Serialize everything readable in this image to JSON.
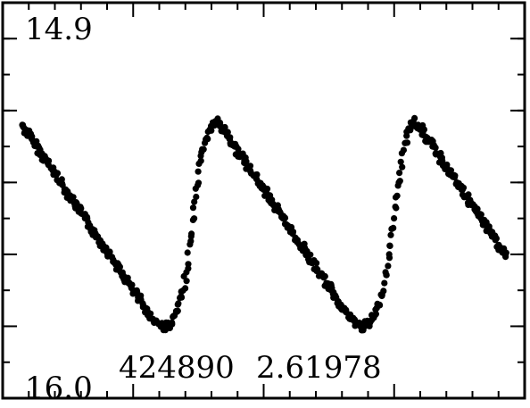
{
  "chart_data": {
    "type": "scatter",
    "title": "",
    "xlabel": "",
    "ylabel": "",
    "xlim": [
      0,
      2.0
    ],
    "ylim": [
      16.0,
      14.9
    ],
    "y_inverted": true,
    "grid": false,
    "y_top_label": "14.9",
    "y_bottom_label": "16.0",
    "annotation": {
      "star_id": "424890",
      "period": "2.61978"
    },
    "marker_color": "#000000",
    "series": [
      {
        "name": "light curve",
        "x": [
          0.0,
          0.02,
          0.04,
          0.06,
          0.08,
          0.1,
          0.12,
          0.14,
          0.16,
          0.18,
          0.2,
          0.22,
          0.24,
          0.26,
          0.28,
          0.3,
          0.32,
          0.34,
          0.36,
          0.38,
          0.4,
          0.42,
          0.44,
          0.46,
          0.48,
          0.5,
          0.52,
          0.54,
          0.56,
          0.58,
          0.6,
          0.62,
          0.64,
          0.66,
          0.68,
          0.7,
          0.72,
          0.74,
          0.76,
          0.78,
          0.8,
          0.82,
          0.84,
          0.86,
          0.88,
          0.9,
          0.92,
          0.94,
          0.96,
          0.98,
          1.0,
          1.02,
          1.04,
          1.06,
          1.08,
          1.1,
          1.12,
          1.14,
          1.16,
          1.18,
          1.2,
          1.22,
          1.24,
          1.26,
          1.28,
          1.3,
          1.32,
          1.34,
          1.36,
          1.38,
          1.4,
          1.42,
          1.44,
          1.46,
          1.48,
          1.5,
          1.52,
          1.54,
          1.56,
          1.58,
          1.6,
          1.62,
          1.64,
          1.66,
          1.68,
          1.7,
          1.72,
          1.74,
          1.76,
          1.78,
          1.8,
          1.82,
          1.84,
          1.86,
          1.88,
          1.9,
          1.92,
          1.94,
          1.96,
          1.98,
          2.0
        ],
        "y": [
          15.24,
          15.26,
          15.28,
          15.3,
          15.32,
          15.34,
          15.36,
          15.38,
          15.4,
          15.42,
          15.44,
          15.46,
          15.48,
          15.5,
          15.52,
          15.54,
          15.56,
          15.58,
          15.6,
          15.62,
          15.64,
          15.66,
          15.68,
          15.7,
          15.72,
          15.74,
          15.76,
          15.78,
          15.79,
          15.8,
          15.8,
          15.79,
          15.76,
          15.72,
          15.65,
          15.55,
          15.44,
          15.34,
          15.28,
          15.25,
          15.23,
          15.24,
          15.26,
          15.28,
          15.3,
          15.32,
          15.34,
          15.36,
          15.38,
          15.4,
          15.42,
          15.44,
          15.46,
          15.48,
          15.5,
          15.52,
          15.54,
          15.56,
          15.58,
          15.6,
          15.62,
          15.64,
          15.66,
          15.68,
          15.7,
          15.72,
          15.74,
          15.76,
          15.78,
          15.79,
          15.8,
          15.8,
          15.79,
          15.77,
          15.74,
          15.68,
          15.6,
          15.5,
          15.4,
          15.31,
          15.25,
          15.23,
          15.24,
          15.26,
          15.28,
          15.3,
          15.32,
          15.34,
          15.36,
          15.38,
          15.4,
          15.42,
          15.44,
          15.46,
          15.48,
          15.5,
          15.52,
          15.54,
          15.56,
          15.58,
          15.6
        ]
      }
    ]
  }
}
